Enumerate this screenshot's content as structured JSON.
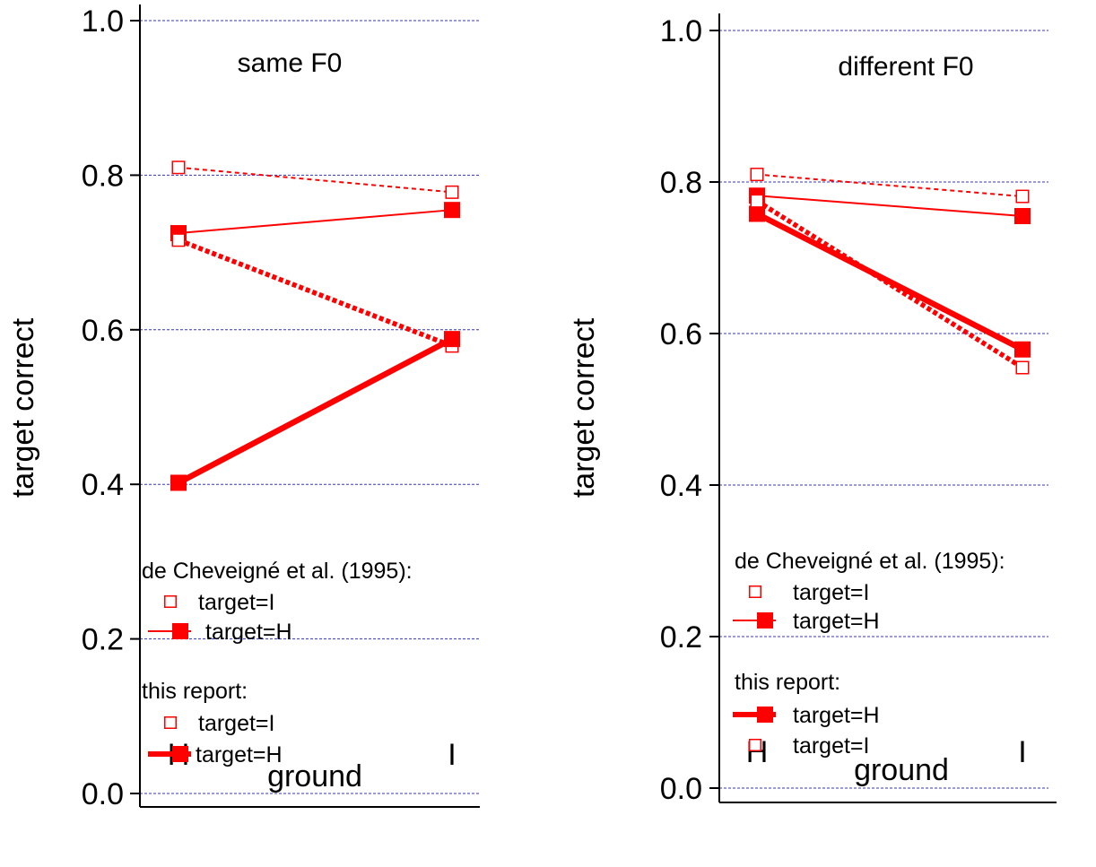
{
  "colors": {
    "series": "#ff0000",
    "grid": "#3333cc",
    "axis": "#000000"
  },
  "chart_data": [
    {
      "type": "line",
      "title": "same F0",
      "xlabel": "ground",
      "ylabel": "target correct",
      "categories": [
        "H",
        "I"
      ],
      "ylim": [
        0,
        1
      ],
      "yticks": [
        "0.0",
        "0.2",
        "0.4",
        "0.6",
        "0.8",
        "1.0"
      ],
      "grid": true,
      "series": [
        {
          "name": "target=I",
          "group": "de Cheveigné et al. (1995):",
          "values": [
            0.81,
            0.778
          ],
          "marker": "open-square",
          "line": "thin-dashed"
        },
        {
          "name": "target=H",
          "group": "de Cheveigné et al. (1995):",
          "values": [
            0.725,
            0.755
          ],
          "marker": "filled-square",
          "line": "thin-solid"
        },
        {
          "name": "target=I",
          "group": "this report:",
          "values": [
            0.716,
            0.579
          ],
          "marker": "open-square",
          "line": "thick-dashed"
        },
        {
          "name": "target=H",
          "group": "this report:",
          "values": [
            0.402,
            0.588
          ],
          "marker": "filled-square",
          "line": "thick-solid"
        }
      ],
      "legend": {
        "placement": "bottom-left",
        "groups": [
          {
            "title": "de Cheveigné et al. (1995):",
            "items": [
              {
                "label": "target=I",
                "marker": "open-square",
                "line": "none"
              },
              {
                "label": "target=H",
                "marker": "filled-square",
                "line": "thin-solid"
              }
            ]
          },
          {
            "title": "this report:",
            "items": [
              {
                "label": "target=I",
                "marker": "open-square",
                "line": "none"
              },
              {
                "label": "target=H",
                "marker": "filled-square",
                "line": "thick-solid"
              }
            ]
          }
        ]
      }
    },
    {
      "type": "line",
      "title": "different F0",
      "xlabel": "ground",
      "ylabel": "target correct",
      "categories": [
        "H",
        "I"
      ],
      "ylim": [
        0,
        1
      ],
      "yticks": [
        "0.0",
        "0.2",
        "0.4",
        "0.6",
        "0.8",
        "1.0"
      ],
      "grid": true,
      "series": [
        {
          "name": "target=I",
          "group": "de Cheveigné et al. (1995):",
          "values": [
            0.81,
            0.781
          ],
          "marker": "open-square",
          "line": "thin-dashed"
        },
        {
          "name": "target=H",
          "group": "de Cheveigné et al. (1995):",
          "values": [
            0.782,
            0.755
          ],
          "marker": "filled-square",
          "line": "thin-solid"
        },
        {
          "name": "target=H",
          "group": "this report:",
          "values": [
            0.758,
            0.579
          ],
          "marker": "filled-square",
          "line": "thick-solid"
        },
        {
          "name": "target=I",
          "group": "this report:",
          "values": [
            0.775,
            0.555
          ],
          "marker": "open-square",
          "line": "thick-dashed"
        }
      ],
      "legend": {
        "placement": "bottom-left",
        "groups": [
          {
            "title": "de Cheveigné et al. (1995):",
            "items": [
              {
                "label": "target=I",
                "marker": "open-square",
                "line": "none"
              },
              {
                "label": "target=H",
                "marker": "filled-square",
                "line": "thin-solid"
              }
            ]
          },
          {
            "title": "this report:",
            "items": [
              {
                "label": "target=H",
                "marker": "filled-square",
                "line": "thick-solid"
              },
              {
                "label": "target=I",
                "marker": "open-square",
                "line": "none"
              }
            ]
          }
        ]
      }
    }
  ]
}
